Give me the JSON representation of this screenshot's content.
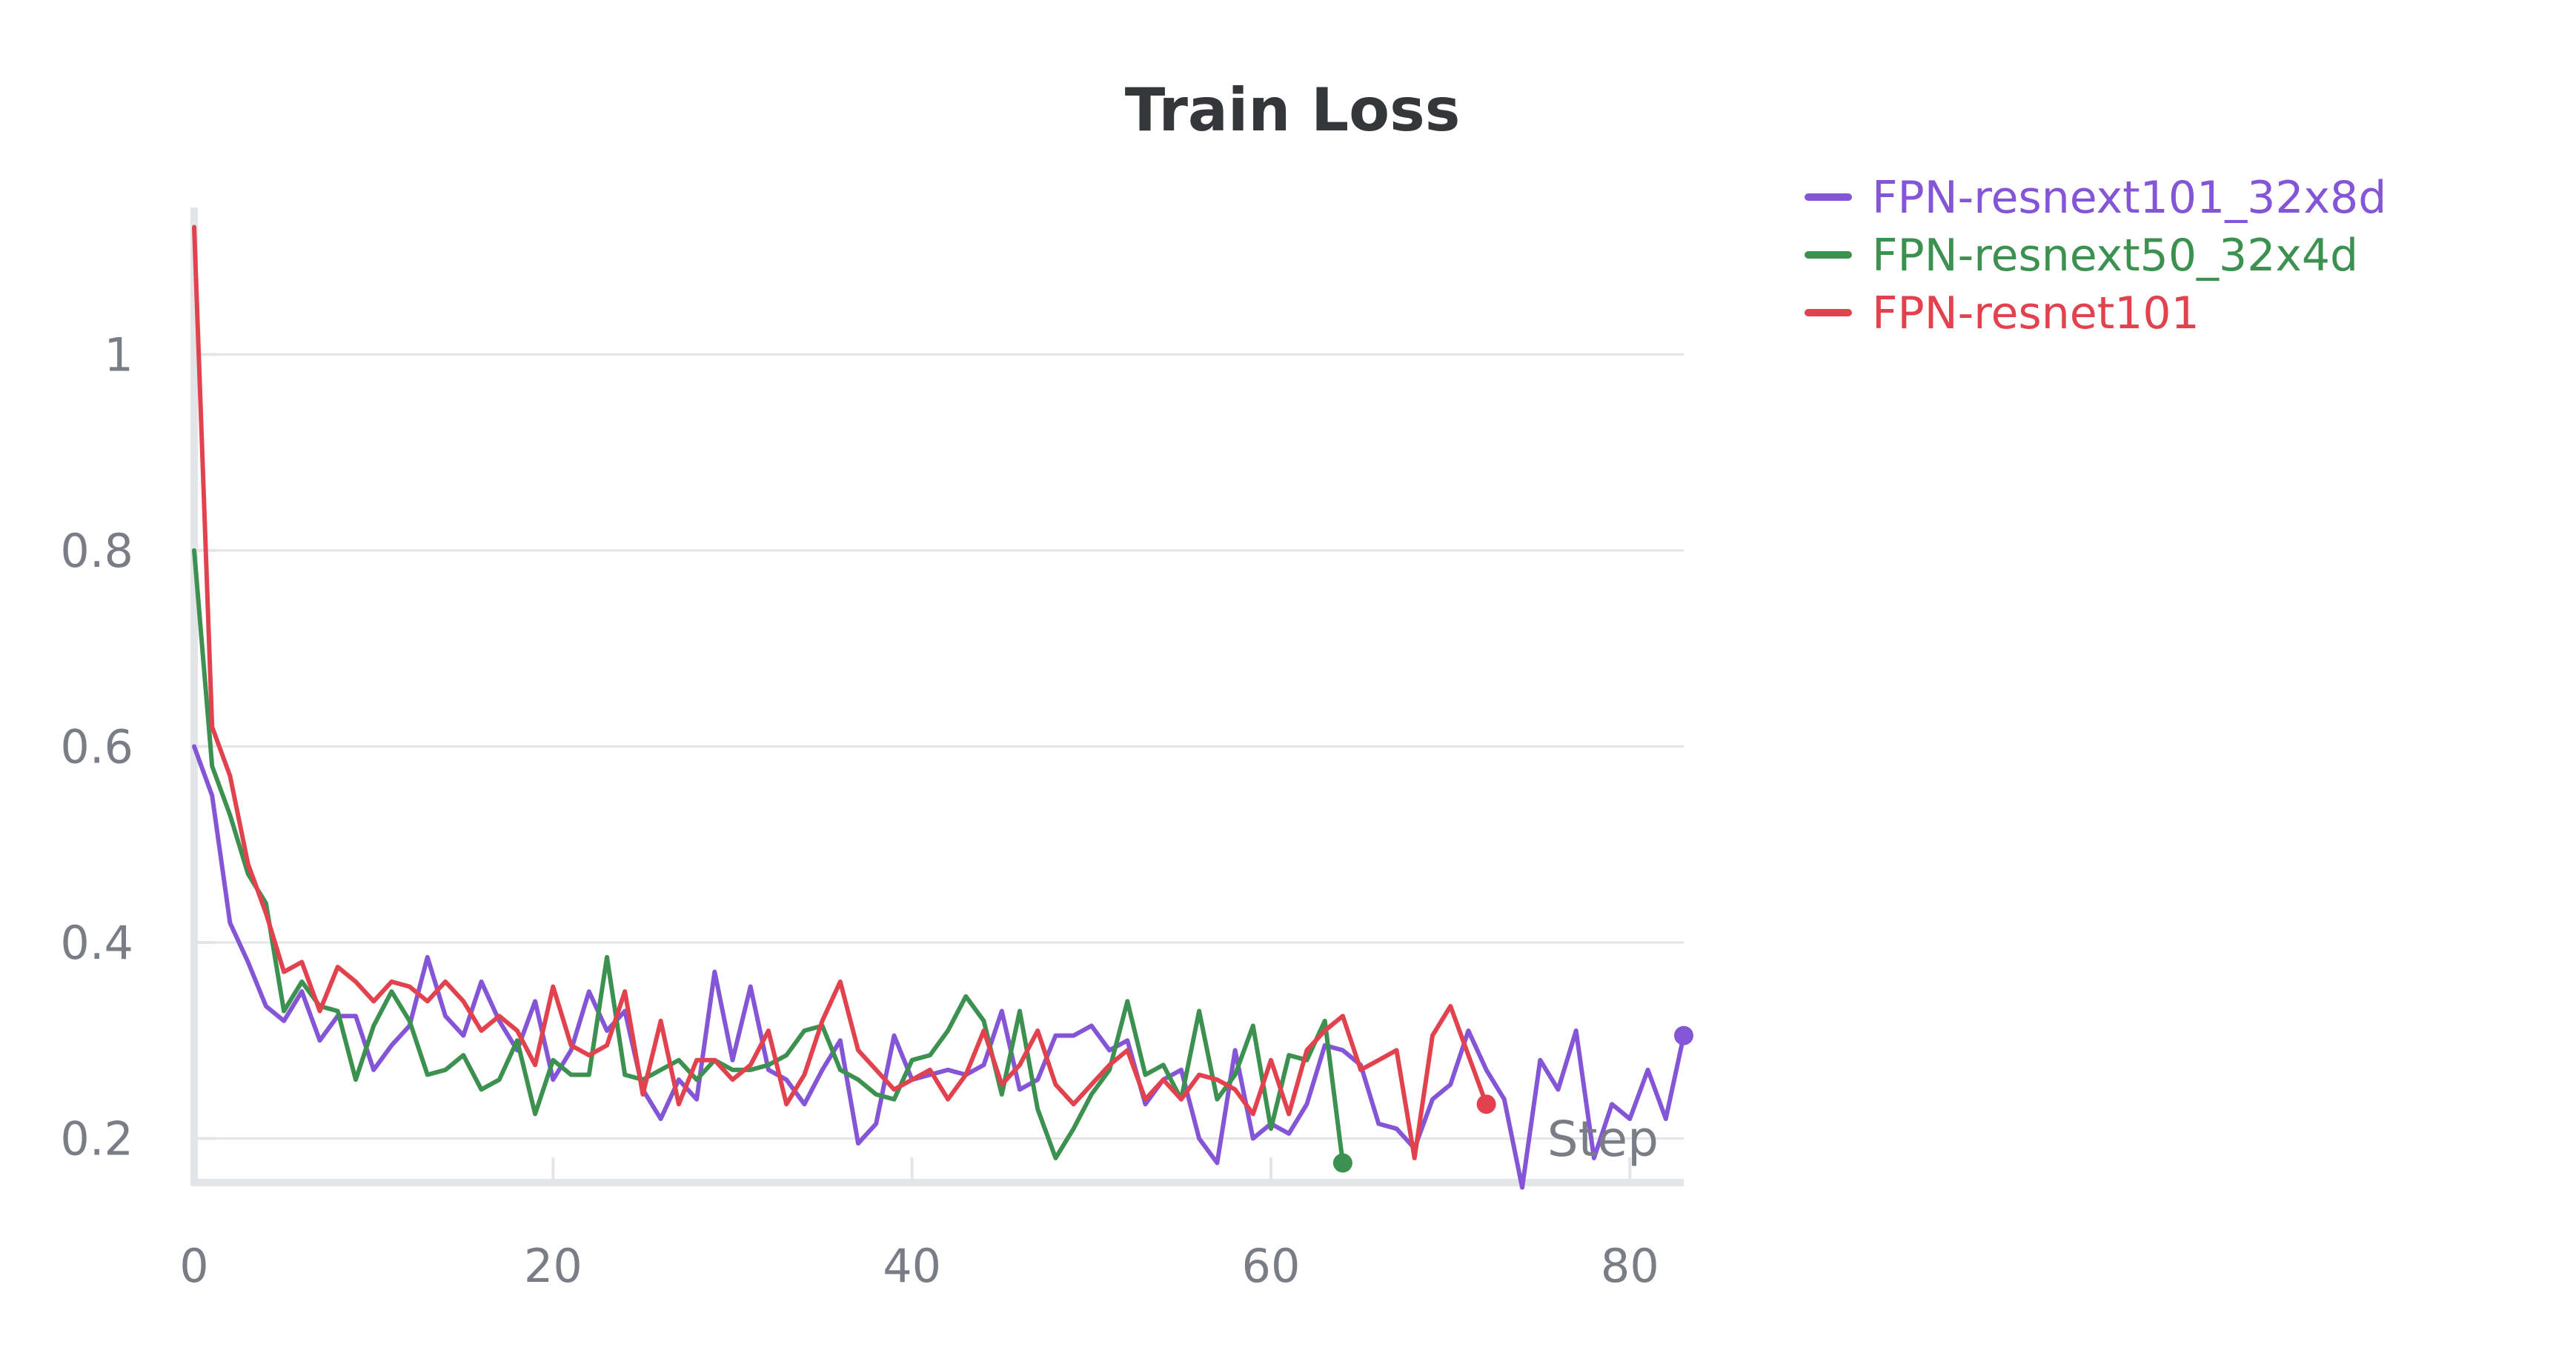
{
  "chart_data": {
    "type": "line",
    "title": "Train Loss",
    "xlabel": "Step",
    "ylabel": "",
    "xlim": [
      0,
      83
    ],
    "ylim": [
      0.155,
      1.15
    ],
    "x_ticks": [
      0,
      20,
      40,
      60,
      80
    ],
    "x_tick_labels": [
      "0",
      "20",
      "40",
      "60",
      "80"
    ],
    "y_ticks": [
      0.2,
      0.4,
      0.6,
      0.8,
      1.0
    ],
    "y_tick_labels": [
      "0.2",
      "0.4",
      "0.6",
      "0.8",
      "1"
    ],
    "grid": true,
    "legend_position": "top-right",
    "series": [
      {
        "name": "FPN-resnext101_32x8d",
        "color": "#8455d6",
        "x": [
          0,
          1,
          2,
          3,
          4,
          5,
          6,
          7,
          8,
          9,
          10,
          11,
          12,
          13,
          14,
          15,
          16,
          17,
          18,
          19,
          20,
          21,
          22,
          23,
          24,
          25,
          26,
          27,
          28,
          29,
          30,
          31,
          32,
          33,
          34,
          35,
          36,
          37,
          38,
          39,
          40,
          41,
          42,
          43,
          44,
          45,
          46,
          47,
          48,
          49,
          50,
          51,
          52,
          53,
          54,
          55,
          56,
          57,
          58,
          59,
          60,
          61,
          62,
          63,
          64,
          65,
          66,
          67,
          68,
          69,
          70,
          71,
          72,
          73,
          74,
          75,
          76,
          77,
          78,
          79,
          80,
          81,
          82,
          83
        ],
        "values": [
          0.6,
          0.55,
          0.42,
          0.38,
          0.335,
          0.32,
          0.35,
          0.3,
          0.325,
          0.325,
          0.27,
          0.295,
          0.315,
          0.385,
          0.325,
          0.305,
          0.36,
          0.32,
          0.29,
          0.34,
          0.26,
          0.29,
          0.35,
          0.31,
          0.33,
          0.25,
          0.22,
          0.26,
          0.24,
          0.37,
          0.28,
          0.355,
          0.27,
          0.26,
          0.235,
          0.27,
          0.3,
          0.195,
          0.215,
          0.305,
          0.26,
          0.265,
          0.27,
          0.265,
          0.275,
          0.33,
          0.25,
          0.26,
          0.305,
          0.305,
          0.315,
          0.29,
          0.3,
          0.235,
          0.26,
          0.27,
          0.2,
          0.175,
          0.29,
          0.2,
          0.215,
          0.205,
          0.235,
          0.295,
          0.29,
          0.275,
          0.215,
          0.21,
          0.19,
          0.24,
          0.255,
          0.31,
          0.27,
          0.24,
          0.15,
          0.28,
          0.25,
          0.31,
          0.18,
          0.235,
          0.22,
          0.27,
          0.22,
          0.305
        ]
      },
      {
        "name": "FPN-resnext50_32x4d",
        "color": "#3d9150",
        "x": [
          0,
          1,
          2,
          3,
          4,
          5,
          6,
          7,
          8,
          9,
          10,
          11,
          12,
          13,
          14,
          15,
          16,
          17,
          18,
          19,
          20,
          21,
          22,
          23,
          24,
          25,
          26,
          27,
          28,
          29,
          30,
          31,
          32,
          33,
          34,
          35,
          36,
          37,
          38,
          39,
          40,
          41,
          42,
          43,
          44,
          45,
          46,
          47,
          48,
          49,
          50,
          51,
          52,
          53,
          54,
          55,
          56,
          57,
          58,
          59,
          60,
          61,
          62,
          63,
          64
        ],
        "values": [
          0.8,
          0.58,
          0.53,
          0.47,
          0.44,
          0.33,
          0.36,
          0.335,
          0.33,
          0.26,
          0.315,
          0.35,
          0.32,
          0.265,
          0.27,
          0.285,
          0.25,
          0.26,
          0.3,
          0.225,
          0.28,
          0.265,
          0.265,
          0.385,
          0.265,
          0.26,
          0.27,
          0.28,
          0.26,
          0.28,
          0.27,
          0.27,
          0.275,
          0.285,
          0.31,
          0.315,
          0.27,
          0.26,
          0.245,
          0.24,
          0.28,
          0.285,
          0.31,
          0.345,
          0.32,
          0.245,
          0.33,
          0.23,
          0.18,
          0.21,
          0.245,
          0.27,
          0.34,
          0.265,
          0.275,
          0.24,
          0.33,
          0.24,
          0.265,
          0.315,
          0.21,
          0.285,
          0.28,
          0.32,
          0.175
        ]
      },
      {
        "name": "FPN-resnet101",
        "color": "#e2424e",
        "x": [
          0,
          1,
          2,
          3,
          4,
          5,
          6,
          7,
          8,
          9,
          10,
          11,
          12,
          13,
          14,
          15,
          16,
          17,
          18,
          19,
          20,
          21,
          22,
          23,
          24,
          25,
          26,
          27,
          28,
          29,
          30,
          31,
          32,
          33,
          34,
          35,
          36,
          37,
          38,
          39,
          40,
          41,
          42,
          43,
          44,
          45,
          46,
          47,
          48,
          49,
          50,
          51,
          52,
          53,
          54,
          55,
          56,
          57,
          58,
          59,
          60,
          61,
          62,
          63,
          64,
          65,
          66,
          67,
          68,
          69,
          70,
          71,
          72
        ],
        "values": [
          1.13,
          0.62,
          0.57,
          0.48,
          0.43,
          0.37,
          0.38,
          0.33,
          0.375,
          0.36,
          0.34,
          0.36,
          0.355,
          0.34,
          0.36,
          0.34,
          0.31,
          0.325,
          0.31,
          0.275,
          0.355,
          0.295,
          0.285,
          0.295,
          0.35,
          0.245,
          0.32,
          0.235,
          0.28,
          0.28,
          0.26,
          0.275,
          0.31,
          0.235,
          0.265,
          0.32,
          0.36,
          0.29,
          0.27,
          0.25,
          0.26,
          0.27,
          0.24,
          0.265,
          0.31,
          0.255,
          0.275,
          0.31,
          0.255,
          0.235,
          0.255,
          0.275,
          0.29,
          0.24,
          0.26,
          0.24,
          0.265,
          0.26,
          0.25,
          0.225,
          0.28,
          0.225,
          0.29,
          0.31,
          0.325,
          0.27,
          0.28,
          0.29,
          0.18,
          0.305,
          0.335,
          0.285,
          0.235
        ]
      }
    ]
  }
}
